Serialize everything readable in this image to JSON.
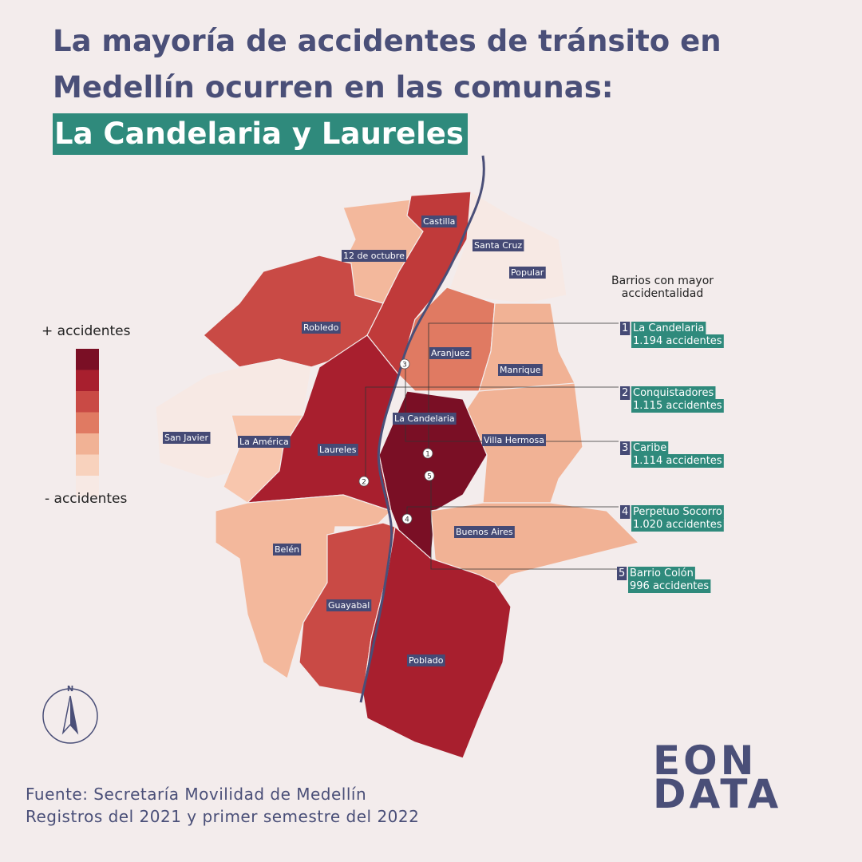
{
  "title": {
    "line1": "La mayoría de accidentes de tránsito en",
    "line2": "Medellín ocurren en las comunas:",
    "highlight": "La Candelaria y Laureles"
  },
  "legend": {
    "top": "+ accidentes",
    "bottom": "- accidentes",
    "colors": [
      "#7a0f25",
      "#a81f2e",
      "#c94a45",
      "#e07a62",
      "#f1b295",
      "#f8d2bd",
      "#f7e9e4"
    ]
  },
  "comunas": [
    {
      "label": "Castilla"
    },
    {
      "label": "12 de octubre"
    },
    {
      "label": "Santa Cruz"
    },
    {
      "label": "Popular"
    },
    {
      "label": "Robledo"
    },
    {
      "label": "Aranjuez"
    },
    {
      "label": "Manrique"
    },
    {
      "label": "La Candelaria"
    },
    {
      "label": "San Javier"
    },
    {
      "label": "La América"
    },
    {
      "label": "Laureles"
    },
    {
      "label": "Villa Hermosa"
    },
    {
      "label": "Buenos Aires"
    },
    {
      "label": "Belén"
    },
    {
      "label": "Guayabal"
    },
    {
      "label": "Poblado"
    }
  ],
  "ranking": {
    "title": [
      "Barrios con mayor",
      "accidentalidad"
    ],
    "items": [
      {
        "rank": 1,
        "name": "La Candelaria",
        "count": "1.194 accidentes"
      },
      {
        "rank": 2,
        "name": "Conquistadores",
        "count": "1.115 accidentes"
      },
      {
        "rank": 3,
        "name": "Caribe",
        "count": "1.114 accidentes"
      },
      {
        "rank": 4,
        "name": "Perpetuo Socorro",
        "count": "1.020 accidentes"
      },
      {
        "rank": 5,
        "name": "Barrio Colón",
        "count": "996 accidentes"
      }
    ]
  },
  "compass": "N",
  "source": [
    "Fuente: Secretaría Movilidad de Medellín",
    "Registros del 2021 y primer semestre  del 2022"
  ],
  "logo": [
    "EON",
    "DATA"
  ]
}
